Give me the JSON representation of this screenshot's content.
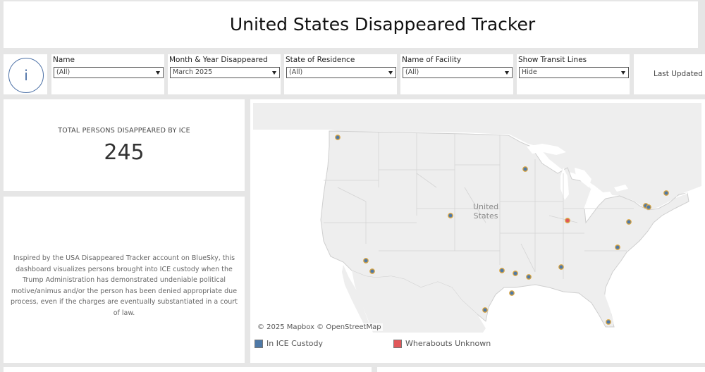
{
  "header": {
    "title": "United States Disappeared Tracker"
  },
  "info_button": {
    "icon": "info-icon",
    "glyph": "i"
  },
  "filters": [
    {
      "label": "Name",
      "value": "(All)"
    },
    {
      "label": "Month & Year Disappeared",
      "value": "March 2025"
    },
    {
      "label": "State of Residence",
      "value": "(All)"
    },
    {
      "label": "Name of Facility",
      "value": "(All)"
    },
    {
      "label": "Show Transit Lines",
      "value": "Hide"
    }
  ],
  "last_updated": {
    "label": "Last Updated"
  },
  "kpi": {
    "label": "TOTAL PERSONS DISAPPEARED BY ICE",
    "value": "245"
  },
  "description": "Inspired by the USA Disappeared Tracker account on BlueSky, this dashboard visualizes persons brought into ICE custody when the Trump Administration has demonstrated undeniable political motive/animus and/or the person has been denied appropriate due process, even if the charges are eventually substantiated in a court of law.",
  "map": {
    "country_label_line1": "United",
    "country_label_line2": "States",
    "attribution": "© 2025 Mapbox  © OpenStreetMap",
    "colors": {
      "custody": "#4e79a7",
      "unknown": "#e15759",
      "land": "#eeeeee",
      "water": "#ffffff",
      "border": "#c9c9c9"
    }
  },
  "legend": [
    {
      "label": "In ICE Custody",
      "color": "#4e79a7"
    },
    {
      "label": "Wherabouts Unknown",
      "color": "#e15759"
    }
  ]
}
